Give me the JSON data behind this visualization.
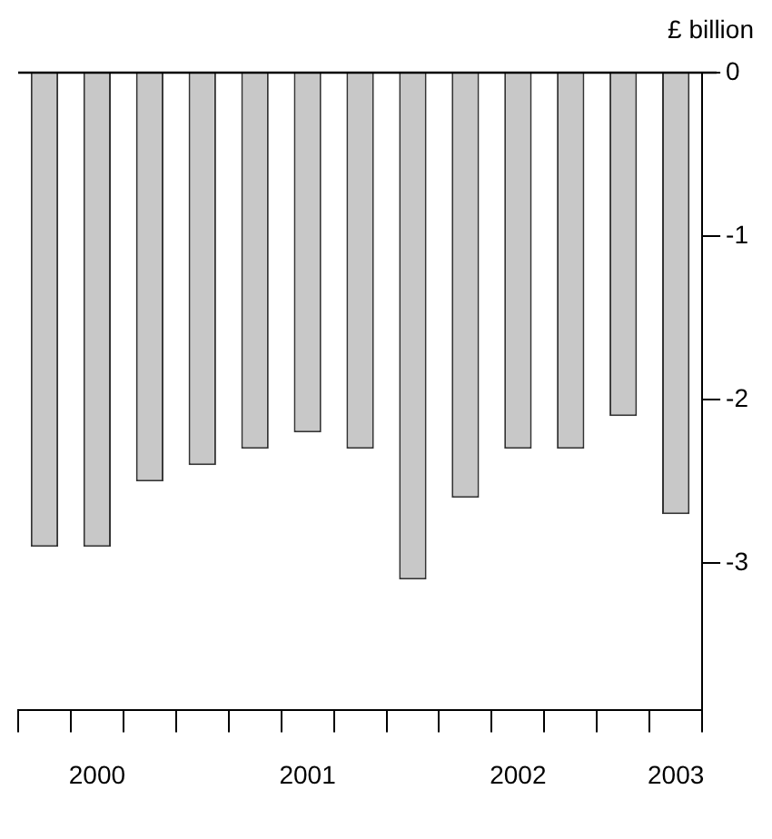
{
  "chart_data": {
    "type": "bar",
    "ylabel": "£ billion",
    "categories": [
      null,
      "2000",
      null,
      null,
      null,
      "2001",
      null,
      null,
      null,
      "2002",
      null,
      null,
      "2003"
    ],
    "series": [
      {
        "color": "#c8c8c8",
        "values": [
          -2.9,
          -2.9,
          -2.5,
          -2.4,
          -2.3,
          -2.2,
          -2.3,
          -3.1,
          -2.6,
          -2.3,
          -2.3,
          -2.1,
          -2.7
        ]
      }
    ],
    "ylim": [
      -3.9,
      0
    ],
    "yticks": [
      0,
      -1,
      -2,
      -3
    ],
    "ref_lines": [
      {
        "axis": "y",
        "value": 0,
        "color": "#000000"
      }
    ],
    "grid": false,
    "legend": false
  }
}
